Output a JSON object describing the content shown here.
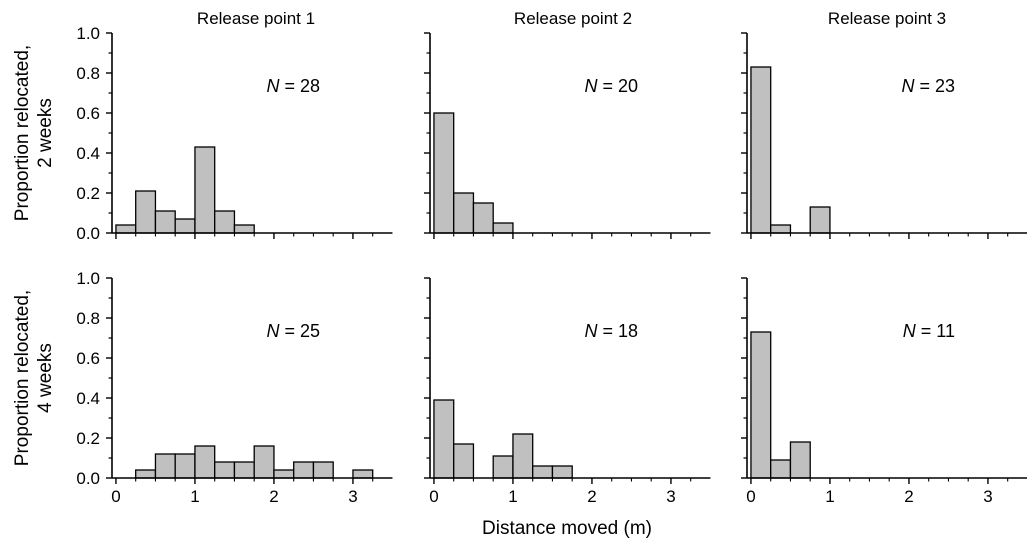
{
  "figure": {
    "row_labels": [
      {
        "line1": "Proportion relocated,",
        "line2": "2 weeks"
      },
      {
        "line1": "Proportion relocated,",
        "line2": "4 weeks"
      }
    ],
    "xlabel": "Distance moved (m)",
    "bar_fill": "#c0c0c0",
    "bar_stroke": "#000000"
  },
  "chart_data": [
    {
      "type": "bar",
      "title": "Release point 1",
      "period": "2 weeks",
      "n_label": "28",
      "bin_width": 0.25,
      "bin_starts": [
        0,
        0.25,
        0.5,
        0.75,
        1.0,
        1.25,
        1.5
      ],
      "values": [
        0.04,
        0.21,
        0.11,
        0.07,
        0.43,
        0.11,
        0.04
      ],
      "xlim": [
        -0.05,
        3.5
      ],
      "ylim": [
        0,
        1.0
      ],
      "xticks": [
        0,
        1,
        2,
        3
      ],
      "yticks": [
        0.0,
        0.2,
        0.4,
        0.6,
        0.8,
        1.0
      ]
    },
    {
      "type": "bar",
      "title": "Release point 2",
      "period": "2 weeks",
      "n_label": "20",
      "bin_width": 0.25,
      "bin_starts": [
        0,
        0.25,
        0.5,
        0.75
      ],
      "values": [
        0.6,
        0.2,
        0.15,
        0.05
      ],
      "xlim": [
        -0.05,
        3.5
      ],
      "ylim": [
        0,
        1.0
      ],
      "xticks": [
        0,
        1,
        2,
        3
      ],
      "yticks": [
        0.0,
        0.2,
        0.4,
        0.6,
        0.8,
        1.0
      ]
    },
    {
      "type": "bar",
      "title": "Release point 3",
      "period": "2 weeks",
      "n_label": "23",
      "bin_width": 0.25,
      "bin_starts": [
        0,
        0.25,
        0.5,
        0.75
      ],
      "values": [
        0.83,
        0.04,
        0,
        0.13
      ],
      "xlim": [
        -0.05,
        3.5
      ],
      "ylim": [
        0,
        1.0
      ],
      "xticks": [
        0,
        1,
        2,
        3
      ],
      "yticks": [
        0.0,
        0.2,
        0.4,
        0.6,
        0.8,
        1.0
      ]
    },
    {
      "type": "bar",
      "title": "Release point 1",
      "period": "4 weeks",
      "n_label": "25",
      "bin_width": 0.25,
      "bin_starts": [
        0.25,
        0.5,
        0.75,
        1.0,
        1.25,
        1.5,
        1.75,
        2.0,
        2.25,
        2.5,
        2.75,
        3.0
      ],
      "values": [
        0.04,
        0.12,
        0.12,
        0.16,
        0.08,
        0.08,
        0.16,
        0.04,
        0.08,
        0.08,
        0,
        0.04
      ],
      "xlim": [
        -0.05,
        3.5
      ],
      "ylim": [
        0,
        1.0
      ],
      "xticks": [
        0,
        1,
        2,
        3
      ],
      "yticks": [
        0.0,
        0.2,
        0.4,
        0.6,
        0.8,
        1.0
      ]
    },
    {
      "type": "bar",
      "title": "Release point 2",
      "period": "4 weeks",
      "n_label": "18",
      "bin_width": 0.25,
      "bin_starts": [
        0,
        0.25,
        0.5,
        0.75,
        1.0,
        1.25,
        1.5
      ],
      "values": [
        0.39,
        0.17,
        0,
        0.11,
        0.22,
        0.06,
        0.06
      ],
      "xlim": [
        -0.05,
        3.5
      ],
      "ylim": [
        0,
        1.0
      ],
      "xticks": [
        0,
        1,
        2,
        3
      ],
      "yticks": [
        0.0,
        0.2,
        0.4,
        0.6,
        0.8,
        1.0
      ]
    },
    {
      "type": "bar",
      "title": "Release point 3",
      "period": "4 weeks",
      "n_label": "11",
      "bin_width": 0.25,
      "bin_starts": [
        0,
        0.25,
        0.5
      ],
      "values": [
        0.73,
        0.09,
        0.18
      ],
      "xlim": [
        -0.05,
        3.5
      ],
      "ylim": [
        0,
        1.0
      ],
      "xticks": [
        0,
        1,
        2,
        3
      ],
      "yticks": [
        0.0,
        0.2,
        0.4,
        0.6,
        0.8,
        1.0
      ]
    }
  ]
}
